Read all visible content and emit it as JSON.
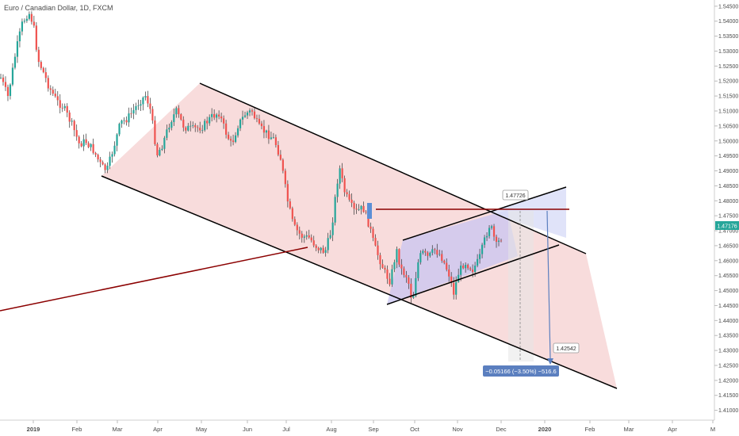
{
  "chart_data": {
    "type": "candlestick",
    "title": "Euro / Canadian Dollar, 1D, FXCM",
    "ylim": [
      1.405,
      1.548
    ],
    "y_ticks": [
      "1.54500",
      "1.54000",
      "1.53500",
      "1.53000",
      "1.52500",
      "1.52000",
      "1.51500",
      "1.51000",
      "1.50500",
      "1.50000",
      "1.49500",
      "1.49000",
      "1.48500",
      "1.48000",
      "1.47500",
      "1.47000",
      "1.46500",
      "1.46000",
      "1.45500",
      "1.45000",
      "1.44500",
      "1.44000",
      "1.43500",
      "1.43000",
      "1.42500",
      "1.42000",
      "1.41500",
      "1.41000"
    ],
    "x_ticks": [
      "2019",
      "Feb",
      "Mar",
      "Apr",
      "May",
      "Jun",
      "Jul",
      "Aug",
      "Sep",
      "Oct",
      "Nov",
      "Dec",
      "2020",
      "Feb",
      "Mar",
      "Apr",
      "M"
    ],
    "x_tick_bold": [
      "2019",
      "2020"
    ],
    "current_price": "1.47176",
    "colors": {
      "up": "#26a69a",
      "down": "#ef5350",
      "wick": "#333333",
      "channel_fill": "#f4c9c9",
      "flag_fill": "#c9c6f2",
      "target_fill": "#d8dcf7",
      "trend_line": "#8b0000",
      "boundary": "#000000",
      "measure": "#5b7fbf",
      "price_badge": "#26a69a"
    },
    "annotations": {
      "upper_label": "1.47726",
      "lower_label": "1.42542",
      "measure_label": "−0.05166 (−3.50%) −516.6"
    }
  }
}
